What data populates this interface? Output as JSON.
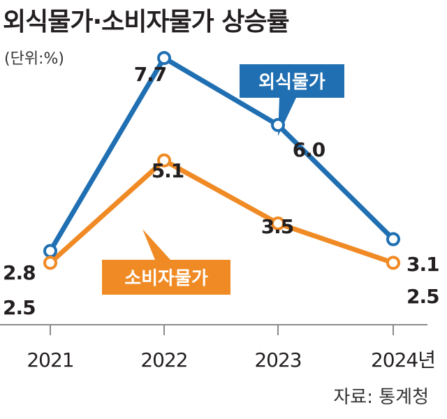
{
  "chart_data": {
    "type": "line",
    "title": "외식물가·소비자물가 상승률",
    "unit_label": "(단위:%)",
    "source": "자료: 통계청",
    "categories": [
      "2021",
      "2022",
      "2023",
      "2024년"
    ],
    "series": [
      {
        "name": "외식물가",
        "color": "#1f6fb2",
        "values": [
          2.8,
          7.7,
          6.0,
          3.1
        ]
      },
      {
        "name": "소비자물가",
        "color": "#f08a24",
        "values": [
          2.5,
          5.1,
          3.5,
          2.5
        ]
      }
    ],
    "ylim": [
      1.3,
      8.5
    ],
    "grid": false,
    "legend": "inline tags"
  }
}
